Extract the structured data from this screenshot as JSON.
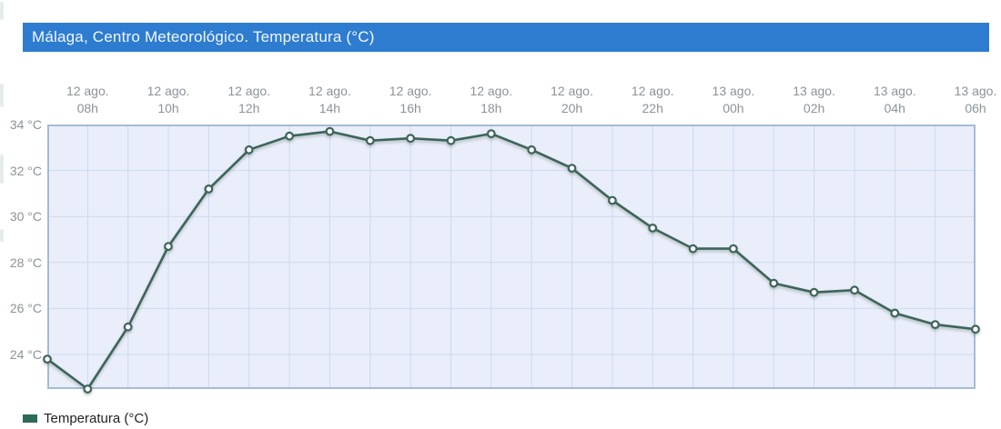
{
  "header": {
    "title": "Málaga, Centro Meteorológico. Temperatura (°C)",
    "background_color": "#2e7cd0",
    "text_color": "#f2f8fd"
  },
  "legend": {
    "label": "Temperatura (°C)",
    "swatch_color": "#2f6a58"
  },
  "axes": {
    "y_ticks": [
      {
        "label": "34 °C",
        "value": 34
      },
      {
        "label": "32 °C",
        "value": 32
      },
      {
        "label": "30 °C",
        "value": 30
      },
      {
        "label": "28 °C",
        "value": 28
      },
      {
        "label": "26 °C",
        "value": 26
      },
      {
        "label": "24 °C",
        "value": 24
      }
    ],
    "x_ticks": [
      {
        "date": "12 ago.",
        "hour": "08h"
      },
      {
        "date": "12 ago.",
        "hour": "10h"
      },
      {
        "date": "12 ago.",
        "hour": "12h"
      },
      {
        "date": "12 ago.",
        "hour": "14h"
      },
      {
        "date": "12 ago.",
        "hour": "16h"
      },
      {
        "date": "12 ago.",
        "hour": "18h"
      },
      {
        "date": "12 ago.",
        "hour": "20h"
      },
      {
        "date": "12 ago.",
        "hour": "22h"
      },
      {
        "date": "13 ago.",
        "hour": "00h"
      },
      {
        "date": "13 ago.",
        "hour": "02h"
      },
      {
        "date": "13 ago.",
        "hour": "04h"
      },
      {
        "date": "13 ago.",
        "hour": "06h"
      }
    ]
  },
  "chart_data": {
    "type": "line",
    "title": "Málaga, Centro Meteorológico. Temperatura (°C)",
    "x": [
      "12 ago. 07h",
      "12 ago. 08h",
      "12 ago. 09h",
      "12 ago. 10h",
      "12 ago. 11h",
      "12 ago. 12h",
      "12 ago. 13h",
      "12 ago. 14h",
      "12 ago. 15h",
      "12 ago. 16h",
      "12 ago. 17h",
      "12 ago. 18h",
      "12 ago. 19h",
      "12 ago. 20h",
      "12 ago. 21h",
      "12 ago. 22h",
      "12 ago. 23h",
      "13 ago. 00h",
      "13 ago. 01h",
      "13 ago. 02h",
      "13 ago. 03h",
      "13 ago. 04h",
      "13 ago. 05h",
      "13 ago. 06h"
    ],
    "series": [
      {
        "name": "Temperatura (°C)",
        "color": "#3e6459",
        "values": [
          23.8,
          22.5,
          25.2,
          28.7,
          31.2,
          32.9,
          33.5,
          33.7,
          33.3,
          33.4,
          33.3,
          33.6,
          32.9,
          32.1,
          30.7,
          29.5,
          28.6,
          28.6,
          27.1,
          26.7,
          26.8,
          25.8,
          25.3,
          25.1
        ]
      }
    ],
    "ylabel": "°C",
    "ylim": [
      22.5,
      34
    ],
    "y_gridline_step": 2,
    "x_gridline_step_hours": 1,
    "x_label_step_hours": 2,
    "grid": true,
    "marker": "open-circle",
    "legend_position": "bottom-left"
  },
  "style": {
    "plot_background": "#e9eefa",
    "gridline_color": "#cdd9ef",
    "plot_border_color": "#a5bbd7",
    "axis_text_color": "#8d9298",
    "marker_fill": "#ffffff",
    "legend_text_color": "#222222"
  }
}
